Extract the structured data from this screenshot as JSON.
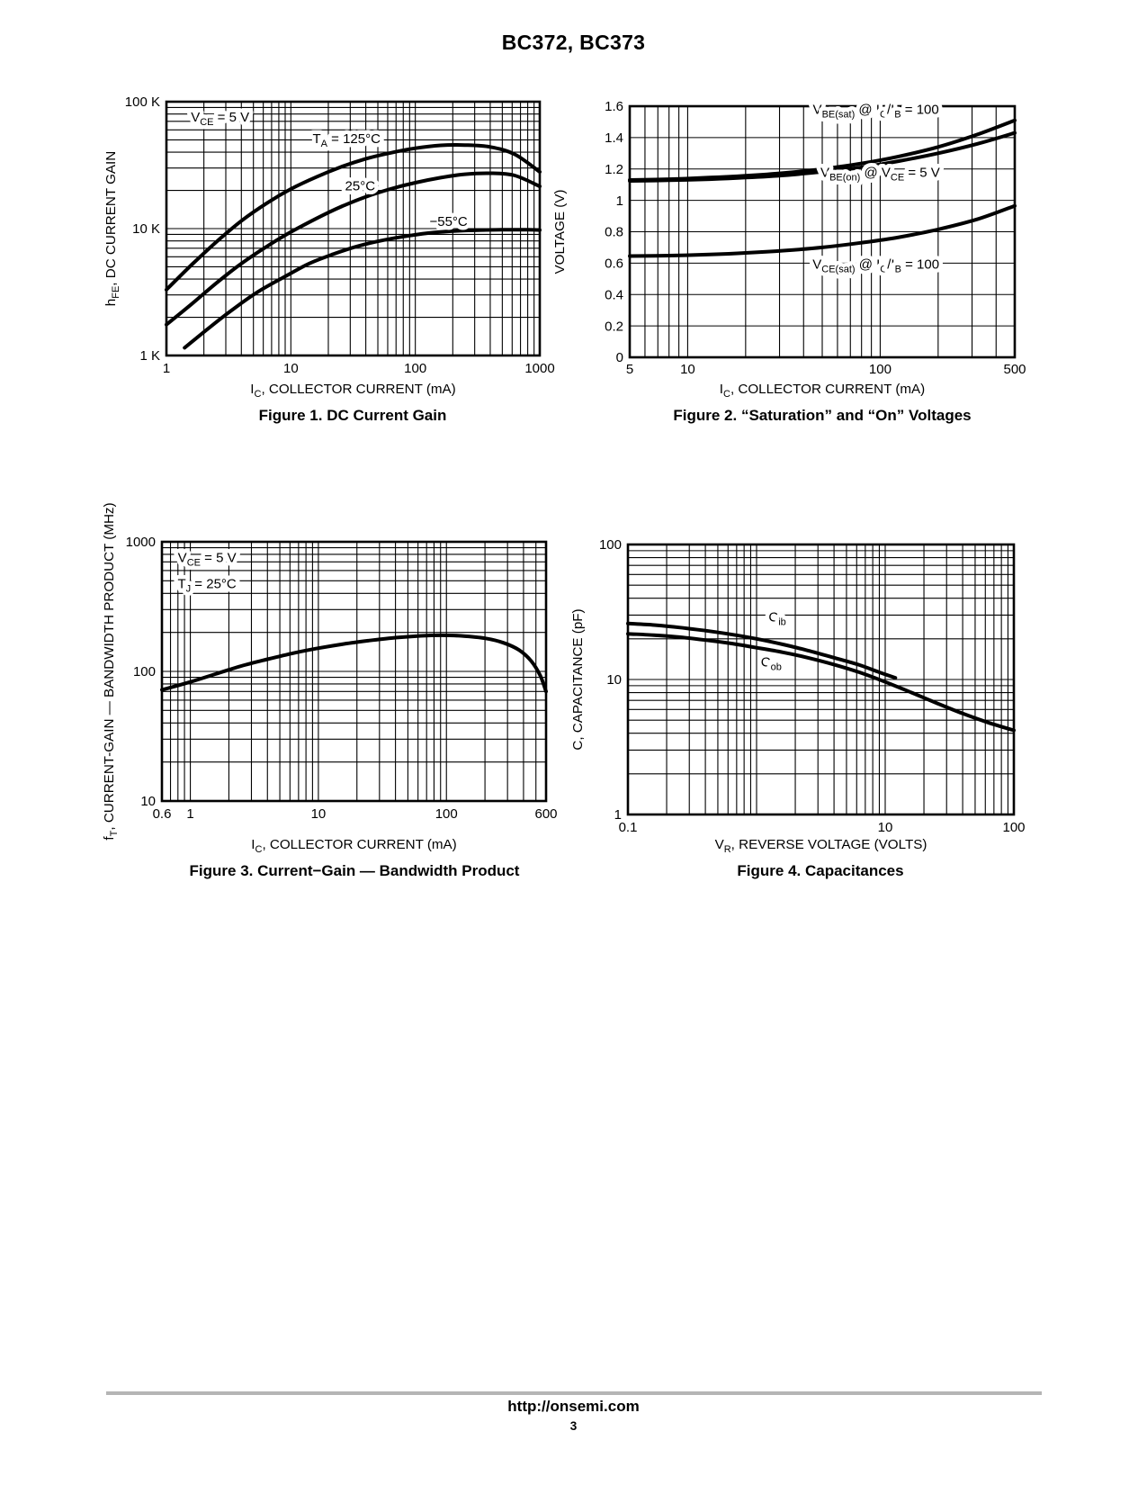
{
  "page": {
    "title": "BC372, BC373",
    "footer": {
      "url": "http://onsemi.com",
      "page_number": "3",
      "rule_color": "#b5b5b5"
    }
  },
  "colors": {
    "ink": "#000000",
    "paper": "#ffffff"
  },
  "chart_data": [
    {
      "id": "fig1",
      "type": "line",
      "title": "Figure 1. DC Current Gain",
      "xlabel": "I_{C}, COLLECTOR CURRENT (mA)",
      "ylabel": "h_{FE}, DC CURRENT GAIN",
      "xscale": "log",
      "yscale": "log",
      "xlim": [
        1,
        1000
      ],
      "ylim": [
        1000,
        100000
      ],
      "grid": "full log minor grid on both axes",
      "legend": "inline annotations",
      "xticks": [
        {
          "v": 1,
          "t": "1"
        },
        {
          "v": 10,
          "t": "10"
        },
        {
          "v": 100,
          "t": "100"
        },
        {
          "v": 1000,
          "t": "1000"
        }
      ],
      "yticks": [
        {
          "v": 1000,
          "t": "1 K"
        },
        {
          "v": 10000,
          "t": "10 K"
        },
        {
          "v": 100000,
          "t": "100 K"
        }
      ],
      "series": [
        {
          "name": "TA = 125°C",
          "points": [
            [
              1,
              3300
            ],
            [
              1.6,
              5200
            ],
            [
              2.5,
              7800
            ],
            [
              4,
              11500
            ],
            [
              6.5,
              16000
            ],
            [
              10,
              20500
            ],
            [
              16,
              25500
            ],
            [
              25,
              30500
            ],
            [
              40,
              35500
            ],
            [
              63,
              39500
            ],
            [
              100,
              43000
            ],
            [
              160,
              45300
            ],
            [
              250,
              45500
            ],
            [
              400,
              44000
            ],
            [
              630,
              38500
            ],
            [
              1000,
              28000
            ]
          ]
        },
        {
          "name": "25°C",
          "points": [
            [
              1,
              1750
            ],
            [
              1.6,
              2550
            ],
            [
              2.5,
              3700
            ],
            [
              4,
              5300
            ],
            [
              6.5,
              7300
            ],
            [
              10,
              9400
            ],
            [
              16,
              12000
            ],
            [
              25,
              14800
            ],
            [
              40,
              17800
            ],
            [
              63,
              20500
            ],
            [
              100,
              23000
            ],
            [
              160,
              25200
            ],
            [
              250,
              26800
            ],
            [
              400,
              27300
            ],
            [
              630,
              26200
            ],
            [
              1000,
              21500
            ]
          ]
        },
        {
          "name": "−55°C",
          "points": [
            [
              1.4,
              1150
            ],
            [
              2.2,
              1650
            ],
            [
              3.5,
              2350
            ],
            [
              5.5,
              3200
            ],
            [
              9,
              4200
            ],
            [
              14,
              5300
            ],
            [
              22,
              6300
            ],
            [
              35,
              7300
            ],
            [
              55,
              8100
            ],
            [
              90,
              8800
            ],
            [
              140,
              9300
            ],
            [
              220,
              9600
            ],
            [
              350,
              9750
            ],
            [
              550,
              9800
            ],
            [
              800,
              9800
            ],
            [
              1000,
              9750
            ]
          ]
        }
      ],
      "annotations": [
        {
          "text": "V_{CE} = 5 V",
          "x": 2.7,
          "y": 70000
        },
        {
          "text": "T_{A} = 125°C",
          "x": 28,
          "y": 47000
        },
        {
          "text": "25°C",
          "x": 36,
          "y": 20000
        },
        {
          "text": "−55°C",
          "x": 185,
          "y": 10500
        }
      ]
    },
    {
      "id": "fig2",
      "type": "line",
      "title": "Figure 2. “Saturation” and “On” Voltages",
      "xlabel": "I_{C}, COLLECTOR CURRENT (mA)",
      "ylabel": "VOLTAGE (V)",
      "xscale": "log",
      "yscale": "linear",
      "xlim": [
        5,
        500
      ],
      "ylim": [
        0,
        1.6
      ],
      "grid": "log minor grid on x, 0.2 V grid on y",
      "legend": "inline annotations",
      "xticks": [
        {
          "v": 5,
          "t": "5"
        },
        {
          "v": 10,
          "t": "10"
        },
        {
          "v": 100,
          "t": "100"
        },
        {
          "v": 500,
          "t": "500"
        }
      ],
      "yticks": [
        {
          "v": 0,
          "t": "0"
        },
        {
          "v": 0.2,
          "t": "0.2"
        },
        {
          "v": 0.4,
          "t": "0.4"
        },
        {
          "v": 0.6,
          "t": "0.6"
        },
        {
          "v": 0.8,
          "t": "0.8"
        },
        {
          "v": 1,
          "t": "1"
        },
        {
          "v": 1.2,
          "t": "1.2"
        },
        {
          "v": 1.4,
          "t": "1.4"
        },
        {
          "v": 1.6,
          "t": "1.6"
        }
      ],
      "series": [
        {
          "name": "VBE(sat) @ IC/IB = 100",
          "points": [
            [
              5,
              1.13
            ],
            [
              8,
              1.135
            ],
            [
              13,
              1.145
            ],
            [
              20,
              1.157
            ],
            [
              32,
              1.175
            ],
            [
              50,
              1.2
            ],
            [
              80,
              1.235
            ],
            [
              125,
              1.28
            ],
            [
              200,
              1.34
            ],
            [
              320,
              1.42
            ],
            [
              500,
              1.51
            ]
          ]
        },
        {
          "name": "VBE(on) @ VCE = 5 V",
          "points": [
            [
              5,
              1.124
            ],
            [
              8,
              1.128
            ],
            [
              13,
              1.135
            ],
            [
              20,
              1.145
            ],
            [
              32,
              1.16
            ],
            [
              50,
              1.182
            ],
            [
              80,
              1.21
            ],
            [
              125,
              1.25
            ],
            [
              200,
              1.3
            ],
            [
              320,
              1.36
            ],
            [
              500,
              1.43
            ]
          ]
        },
        {
          "name": "VCE(sat) @ IC/IB = 100",
          "points": [
            [
              5,
              0.645
            ],
            [
              8,
              0.648
            ],
            [
              13,
              0.655
            ],
            [
              20,
              0.665
            ],
            [
              32,
              0.68
            ],
            [
              50,
              0.7
            ],
            [
              80,
              0.73
            ],
            [
              125,
              0.765
            ],
            [
              200,
              0.815
            ],
            [
              320,
              0.88
            ],
            [
              500,
              0.965
            ]
          ]
        }
      ],
      "annotations": [
        {
          "text": "V_{BE(sat)} @ I_{C}/I_{B} = 100",
          "x": 95,
          "y": 1.55
        },
        {
          "text": "V_{BE(on)} @ V_{CE} = 5 V",
          "x": 100,
          "y": 1.15
        },
        {
          "text": "V_{CE(sat)} @ I_{C}/I_{B} = 100",
          "x": 95,
          "y": 0.565
        }
      ]
    },
    {
      "id": "fig3",
      "type": "line",
      "title": "Figure 3. Current−Gain — Bandwidth Product",
      "xlabel": "I_{C}, COLLECTOR CURRENT (mA)",
      "ylabel": "f_{T}, CURRENT-GAIN — BANDWIDTH PRODUCT (MHz)",
      "xscale": "log",
      "yscale": "log",
      "xlim": [
        0.6,
        600
      ],
      "ylim": [
        10,
        1000
      ],
      "grid": "full log minor grid on both axes",
      "legend": "inline annotations",
      "xticks": [
        {
          "v": 0.6,
          "t": "0.6"
        },
        {
          "v": 1,
          "t": "1"
        },
        {
          "v": 10,
          "t": "10"
        },
        {
          "v": 100,
          "t": "100"
        },
        {
          "v": 600,
          "t": "600"
        }
      ],
      "yticks": [
        {
          "v": 10,
          "t": "10"
        },
        {
          "v": 100,
          "t": "100"
        },
        {
          "v": 1000,
          "t": "1000"
        }
      ],
      "series": [
        {
          "name": "fT",
          "points": [
            [
              0.6,
              72
            ],
            [
              1,
              83
            ],
            [
              1.6,
              96
            ],
            [
              2.5,
              110
            ],
            [
              4,
              124
            ],
            [
              6.5,
              139
            ],
            [
              10,
              151
            ],
            [
              16,
              163
            ],
            [
              25,
              173
            ],
            [
              40,
              182
            ],
            [
              63,
              188
            ],
            [
              90,
              190
            ],
            [
              130,
              188
            ],
            [
              200,
              180
            ],
            [
              280,
              166
            ],
            [
              370,
              146
            ],
            [
              460,
              120
            ],
            [
              540,
              93
            ],
            [
              600,
              70
            ]
          ]
        }
      ],
      "annotations": [
        {
          "text": "V_{CE} = 5 V",
          "x": 1.35,
          "y": 700
        },
        {
          "text": "T_{J} = 25°C",
          "x": 1.35,
          "y": 440
        }
      ]
    },
    {
      "id": "fig4",
      "type": "line",
      "title": "Figure 4. Capacitances",
      "xlabel": "V_{R}, REVERSE VOLTAGE (VOLTS)",
      "ylabel": "C, CAPACITANCE (pF)",
      "xscale": "log",
      "yscale": "log",
      "xlim": [
        0.1,
        100
      ],
      "ylim": [
        1,
        100
      ],
      "grid": "full log minor grid on both axes",
      "legend": "inline annotations",
      "xticks": [
        {
          "v": 0.1,
          "t": "0.1"
        },
        {
          "v": 10,
          "t": "10"
        },
        {
          "v": 100,
          "t": "100"
        }
      ],
      "yticks": [
        {
          "v": 1,
          "t": "1"
        },
        {
          "v": 10,
          "t": "10"
        },
        {
          "v": 100,
          "t": "100"
        }
      ],
      "series": [
        {
          "name": "Cib",
          "points": [
            [
              0.1,
              26
            ],
            [
              0.16,
              25.3
            ],
            [
              0.25,
              24.3
            ],
            [
              0.4,
              23
            ],
            [
              0.63,
              21.6
            ],
            [
              1,
              20
            ],
            [
              1.6,
              18.2
            ],
            [
              2.5,
              16.4
            ],
            [
              4,
              14.5
            ],
            [
              6.3,
              12.8
            ],
            [
              9,
              11.3
            ],
            [
              12,
              10.3
            ]
          ]
        },
        {
          "name": "Cob",
          "points": [
            [
              0.1,
              21.8
            ],
            [
              0.16,
              21.3
            ],
            [
              0.25,
              20.6
            ],
            [
              0.4,
              19.6
            ],
            [
              0.63,
              18.5
            ],
            [
              1,
              17.2
            ],
            [
              1.6,
              15.9
            ],
            [
              2.5,
              14.5
            ],
            [
              4,
              12.9
            ],
            [
              6.3,
              11.3
            ],
            [
              10,
              9.6
            ],
            [
              16,
              8
            ],
            [
              25,
              6.7
            ],
            [
              40,
              5.6
            ],
            [
              63,
              4.8
            ],
            [
              100,
              4.2
            ]
          ]
        }
      ],
      "annotations": [
        {
          "text": "C_{ib}",
          "x": 1.45,
          "y": 27
        },
        {
          "text": "C_{ob}",
          "x": 1.3,
          "y": 12.5
        }
      ]
    }
  ]
}
